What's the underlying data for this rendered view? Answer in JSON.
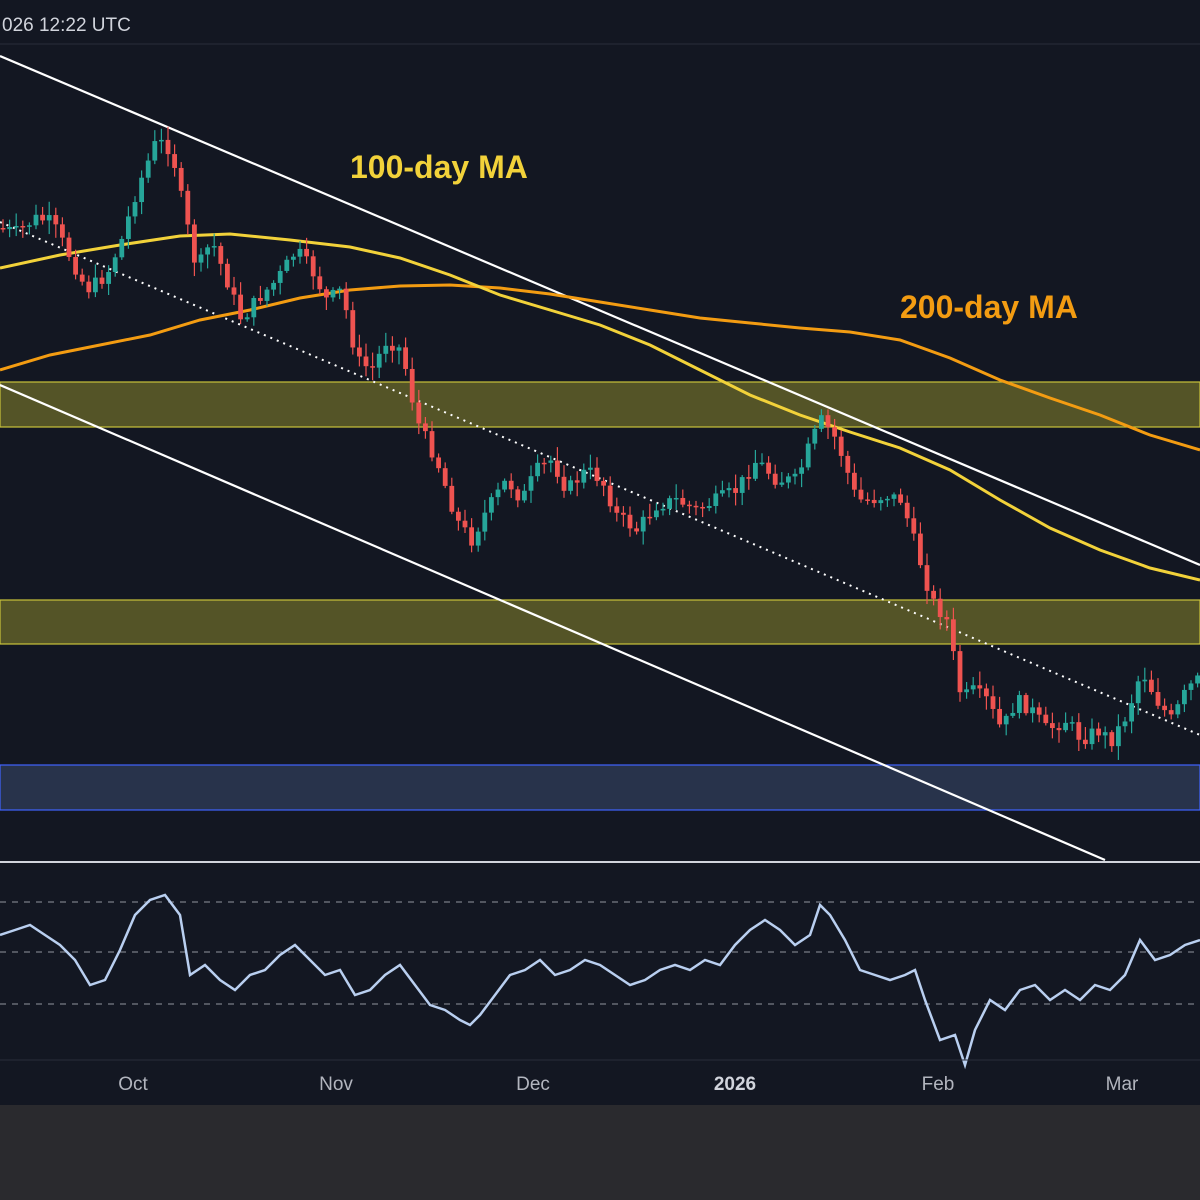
{
  "header": {
    "timestamp": "026 12:22 UTC"
  },
  "colors": {
    "background": "#131722",
    "bottom_bar": "#2a2a2e",
    "candle_up": "#26a69a",
    "candle_down": "#ef5350",
    "ma100": "#f2d23a",
    "ma200": "#f39c12",
    "channel": "#ffffff",
    "zone_yellow": "#6b6a2a",
    "zone_blue": "#3a4a6e",
    "rsi_line": "#b9cff0"
  },
  "chart_data": {
    "type": "line",
    "annotations": {
      "ma100_label": "100-day MA",
      "ma200_label": "200-day MA"
    },
    "x_tick_labels": [
      "Oct",
      "Nov",
      "Dec",
      "2026",
      "Feb",
      "Mar"
    ],
    "series": [
      {
        "name": "100-day MA",
        "color": "#f2d23a"
      },
      {
        "name": "200-day MA",
        "color": "#f39c12"
      }
    ],
    "price_panel": {
      "candles_drawn_from_trace": true,
      "price_trace": [
        [
          0,
          228
        ],
        [
          20,
          232
        ],
        [
          40,
          218
        ],
        [
          55,
          222
        ],
        [
          70,
          250
        ],
        [
          90,
          290
        ],
        [
          110,
          275
        ],
        [
          125,
          240
        ],
        [
          140,
          190
        ],
        [
          160,
          140
        ],
        [
          175,
          150
        ],
        [
          185,
          200
        ],
        [
          200,
          270
        ],
        [
          215,
          240
        ],
        [
          230,
          280
        ],
        [
          245,
          320
        ],
        [
          260,
          300
        ],
        [
          280,
          280
        ],
        [
          300,
          250
        ],
        [
          315,
          270
        ],
        [
          330,
          300
        ],
        [
          345,
          290
        ],
        [
          360,
          360
        ],
        [
          375,
          370
        ],
        [
          390,
          340
        ],
        [
          405,
          350
        ],
        [
          420,
          420
        ],
        [
          440,
          460
        ],
        [
          460,
          520
        ],
        [
          475,
          540
        ],
        [
          490,
          510
        ],
        [
          510,
          480
        ],
        [
          525,
          500
        ],
        [
          540,
          470
        ],
        [
          555,
          460
        ],
        [
          570,
          490
        ],
        [
          590,
          470
        ],
        [
          605,
          480
        ],
        [
          620,
          515
        ],
        [
          640,
          530
        ],
        [
          660,
          505
        ],
        [
          680,
          500
        ],
        [
          700,
          510
        ],
        [
          720,
          500
        ],
        [
          740,
          490
        ],
        [
          760,
          460
        ],
        [
          780,
          480
        ],
        [
          800,
          480
        ],
        [
          815,
          440
        ],
        [
          825,
          420
        ],
        [
          840,
          440
        ],
        [
          860,
          500
        ],
        [
          875,
          500
        ],
        [
          890,
          495
        ],
        [
          905,
          500
        ],
        [
          920,
          550
        ],
        [
          935,
          600
        ],
        [
          950,
          620
        ],
        [
          965,
          700
        ],
        [
          975,
          690
        ],
        [
          990,
          700
        ],
        [
          1005,
          730
        ],
        [
          1020,
          700
        ],
        [
          1035,
          710
        ],
        [
          1050,
          730
        ],
        [
          1070,
          720
        ],
        [
          1085,
          740
        ],
        [
          1100,
          730
        ],
        [
          1115,
          740
        ],
        [
          1130,
          715
        ],
        [
          1145,
          670
        ],
        [
          1160,
          700
        ],
        [
          1175,
          720
        ],
        [
          1190,
          690
        ],
        [
          1200,
          680
        ]
      ],
      "ma100_trace": [
        [
          0,
          268
        ],
        [
          60,
          255
        ],
        [
          120,
          245
        ],
        [
          180,
          236
        ],
        [
          230,
          234
        ],
        [
          290,
          240
        ],
        [
          350,
          247
        ],
        [
          400,
          258
        ],
        [
          450,
          275
        ],
        [
          500,
          295
        ],
        [
          550,
          310
        ],
        [
          600,
          325
        ],
        [
          650,
          345
        ],
        [
          700,
          370
        ],
        [
          750,
          395
        ],
        [
          800,
          415
        ],
        [
          850,
          432
        ],
        [
          900,
          448
        ],
        [
          950,
          470
        ],
        [
          1000,
          500
        ],
        [
          1050,
          528
        ],
        [
          1100,
          550
        ],
        [
          1150,
          568
        ],
        [
          1200,
          580
        ]
      ],
      "ma200_trace": [
        [
          0,
          370
        ],
        [
          50,
          355
        ],
        [
          100,
          345
        ],
        [
          150,
          335
        ],
        [
          200,
          320
        ],
        [
          250,
          310
        ],
        [
          300,
          298
        ],
        [
          350,
          290
        ],
        [
          400,
          286
        ],
        [
          450,
          285
        ],
        [
          500,
          288
        ],
        [
          550,
          294
        ],
        [
          600,
          302
        ],
        [
          650,
          310
        ],
        [
          700,
          318
        ],
        [
          750,
          323
        ],
        [
          800,
          328
        ],
        [
          850,
          332
        ],
        [
          900,
          340
        ],
        [
          950,
          358
        ],
        [
          1000,
          380
        ],
        [
          1050,
          398
        ],
        [
          1100,
          415
        ],
        [
          1150,
          435
        ],
        [
          1200,
          450
        ]
      ],
      "channel_upper": [
        [
          0,
          56
        ],
        [
          1200,
          565
        ]
      ],
      "channel_lower": [
        [
          0,
          385
        ],
        [
          1105,
          860
        ]
      ],
      "channel_mid_dotted": [
        [
          0,
          222
        ],
        [
          1200,
          735
        ]
      ],
      "zones": [
        {
          "name": "upper-resistance-zone",
          "top": 382,
          "bottom": 427,
          "kind": "yellow"
        },
        {
          "name": "lower-resistance-zone",
          "top": 600,
          "bottom": 644,
          "kind": "yellow"
        },
        {
          "name": "support-zone",
          "top": 765,
          "bottom": 810,
          "kind": "blue"
        }
      ]
    },
    "rsi_panel": {
      "levels": [
        902,
        952,
        1004
      ],
      "rsi_trace": [
        [
          0,
          935
        ],
        [
          15,
          930
        ],
        [
          30,
          925
        ],
        [
          45,
          935
        ],
        [
          60,
          945
        ],
        [
          75,
          960
        ],
        [
          90,
          985
        ],
        [
          105,
          980
        ],
        [
          120,
          950
        ],
        [
          135,
          915
        ],
        [
          150,
          900
        ],
        [
          165,
          895
        ],
        [
          180,
          915
        ],
        [
          190,
          975
        ],
        [
          205,
          965
        ],
        [
          220,
          980
        ],
        [
          235,
          990
        ],
        [
          250,
          975
        ],
        [
          265,
          970
        ],
        [
          280,
          955
        ],
        [
          295,
          945
        ],
        [
          310,
          960
        ],
        [
          325,
          975
        ],
        [
          340,
          970
        ],
        [
          355,
          995
        ],
        [
          370,
          990
        ],
        [
          385,
          975
        ],
        [
          400,
          965
        ],
        [
          415,
          985
        ],
        [
          430,
          1005
        ],
        [
          445,
          1010
        ],
        [
          460,
          1020
        ],
        [
          470,
          1025
        ],
        [
          480,
          1015
        ],
        [
          495,
          995
        ],
        [
          510,
          975
        ],
        [
          525,
          970
        ],
        [
          540,
          960
        ],
        [
          555,
          975
        ],
        [
          570,
          970
        ],
        [
          585,
          960
        ],
        [
          600,
          965
        ],
        [
          615,
          975
        ],
        [
          630,
          985
        ],
        [
          645,
          980
        ],
        [
          660,
          970
        ],
        [
          675,
          965
        ],
        [
          690,
          970
        ],
        [
          705,
          960
        ],
        [
          720,
          965
        ],
        [
          735,
          945
        ],
        [
          750,
          930
        ],
        [
          765,
          920
        ],
        [
          780,
          930
        ],
        [
          795,
          945
        ],
        [
          810,
          935
        ],
        [
          820,
          905
        ],
        [
          830,
          915
        ],
        [
          845,
          940
        ],
        [
          860,
          970
        ],
        [
          875,
          975
        ],
        [
          890,
          980
        ],
        [
          905,
          975
        ],
        [
          915,
          970
        ],
        [
          925,
          1000
        ],
        [
          940,
          1040
        ],
        [
          955,
          1035
        ],
        [
          965,
          1065
        ],
        [
          975,
          1030
        ],
        [
          990,
          1000
        ],
        [
          1005,
          1010
        ],
        [
          1020,
          990
        ],
        [
          1035,
          985
        ],
        [
          1050,
          1000
        ],
        [
          1065,
          990
        ],
        [
          1080,
          1000
        ],
        [
          1095,
          985
        ],
        [
          1110,
          990
        ],
        [
          1125,
          975
        ],
        [
          1140,
          940
        ],
        [
          1155,
          960
        ],
        [
          1170,
          955
        ],
        [
          1185,
          945
        ],
        [
          1200,
          940
        ]
      ]
    }
  }
}
